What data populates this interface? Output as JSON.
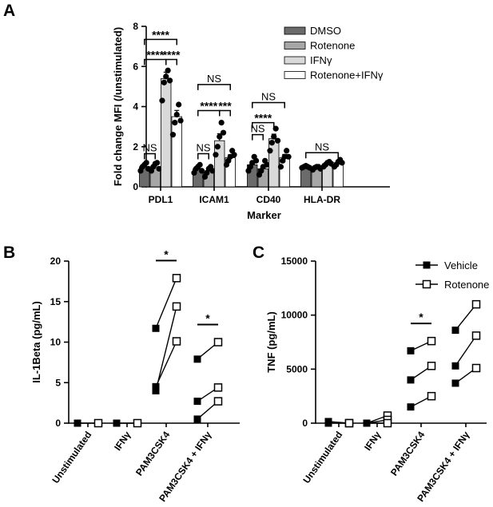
{
  "chart_data": [
    {
      "panel": "A",
      "type": "bar",
      "xlabel": "Marker",
      "ylabel": "Fold change MFI (/unstimulated)",
      "ylim": [
        0,
        8
      ],
      "yticks": [
        0,
        2,
        4,
        6,
        8
      ],
      "categories": [
        "PDL1",
        "ICAM1",
        "CD40",
        "HLA-DR"
      ],
      "legend_position": "top-right",
      "series": [
        {
          "name": "DMSO",
          "color": "#6b6b6b",
          "values": [
            1.0,
            0.9,
            1.1,
            1.0
          ],
          "points": [
            [
              0.8,
              1.0,
              1.1,
              1.2,
              0.9
            ],
            [
              0.7,
              0.9,
              1.0,
              1.1,
              0.8
            ],
            [
              0.8,
              1.0,
              1.2,
              1.5,
              1.3
            ],
            [
              0.95,
              1.0,
              1.05,
              1.0,
              0.95
            ]
          ]
        },
        {
          "name": "Rotenone",
          "color": "#a6a6a6",
          "values": [
            1.0,
            0.8,
            0.9,
            0.95
          ],
          "points": [
            [
              0.8,
              1.0,
              1.15,
              1.2,
              0.9
            ],
            [
              0.5,
              0.7,
              0.9,
              1.0,
              0.8
            ],
            [
              0.6,
              0.8,
              1.0,
              1.3,
              1.1
            ],
            [
              0.85,
              0.95,
              1.0,
              1.0,
              0.9
            ]
          ]
        },
        {
          "name": "IFNγ",
          "color": "#d9d9d9",
          "values": [
            5.4,
            2.3,
            2.4,
            1.15
          ],
          "points": [
            [
              4.3,
              5.2,
              5.5,
              5.8,
              5.3
            ],
            [
              1.6,
              2.0,
              2.5,
              3.2,
              2.7
            ],
            [
              1.8,
              2.2,
              2.5,
              2.9,
              2.3
            ],
            [
              1.0,
              1.1,
              1.2,
              1.25,
              1.15
            ]
          ]
        },
        {
          "name": "Rotenone+IFNγ",
          "color": "#ffffff",
          "values": [
            3.5,
            1.45,
            1.45,
            1.2
          ],
          "points": [
            [
              2.6,
              3.2,
              3.6,
              4.1,
              3.3
            ],
            [
              1.1,
              1.3,
              1.5,
              1.8,
              1.6
            ],
            [
              1.0,
              1.3,
              1.5,
              1.8,
              1.5
            ],
            [
              1.0,
              1.1,
              1.25,
              1.35,
              1.2
            ]
          ]
        }
      ],
      "annotations": [
        {
          "text": "NS",
          "cat": 0,
          "from": 0,
          "to": 1,
          "y": 1.65
        },
        {
          "text": "****",
          "cat": 0,
          "from": 0,
          "to": 2,
          "y": 6.35
        },
        {
          "text": "****",
          "cat": 0,
          "from": 2,
          "to": 3,
          "y": 6.35
        },
        {
          "text": "****",
          "cat": 0,
          "from": 0,
          "to": 3,
          "y": 7.35
        },
        {
          "text": "NS",
          "cat": 1,
          "from": 0,
          "to": 1,
          "y": 1.65
        },
        {
          "text": "****",
          "cat": 1,
          "from": 0,
          "to": 2,
          "y": 3.8
        },
        {
          "text": "***",
          "cat": 1,
          "from": 2,
          "to": 3,
          "y": 3.8
        },
        {
          "text": "NS",
          "cat": 1,
          "from": 0,
          "to": 3,
          "y": 5.1
        },
        {
          "text": "NS",
          "cat": 2,
          "from": 0,
          "to": 1,
          "y": 2.6
        },
        {
          "text": "****",
          "cat": 2,
          "from": 0,
          "to": 2,
          "y": 3.2
        },
        {
          "text": "NS",
          "cat": 2,
          "from": 0,
          "to": 3,
          "y": 4.2
        },
        {
          "text": "NS",
          "cat": 3,
          "from": 0,
          "to": 3,
          "y": 1.7
        }
      ]
    },
    {
      "panel": "B",
      "type": "line",
      "ylabel": "IL-1Beta (pg/mL)",
      "ylim": [
        0,
        20
      ],
      "yticks": [
        0,
        5,
        10,
        15,
        20
      ],
      "categories": [
        "Unstimulated",
        "IFNγ",
        "PAM3CSK4",
        "PAM3CSK4 + IFNγ"
      ],
      "pairs": [
        [
          [
            0,
            0
          ]
        ],
        [
          [
            0,
            0
          ]
        ],
        [
          [
            11.7,
            17.9
          ],
          [
            4.0,
            14.4
          ],
          [
            4.5,
            10.1
          ]
        ],
        [
          [
            7.9,
            10.0
          ],
          [
            2.7,
            4.4
          ],
          [
            0.5,
            2.7
          ]
        ]
      ],
      "significance": [
        {
          "cat": 2,
          "text": "*"
        },
        {
          "cat": 3,
          "text": "*"
        }
      ]
    },
    {
      "panel": "C",
      "type": "line",
      "ylabel": "TNF (pg/mL)",
      "ylim": [
        0,
        15000
      ],
      "yticks": [
        0,
        5000,
        10000,
        15000
      ],
      "categories": [
        "Unstimulated",
        "IFNγ",
        "PAM3CSK4",
        "PAM3CSK4 + IFNγ"
      ],
      "legend_position": "top-right",
      "series": [
        {
          "name": "Vehicle",
          "marker": "filled-square"
        },
        {
          "name": "Rotenone",
          "marker": "open-square"
        }
      ],
      "pairs": [
        [
          [
            150,
            0
          ],
          [
            0,
            0
          ]
        ],
        [
          [
            0,
            700
          ],
          [
            0,
            300
          ],
          [
            0,
            0
          ]
        ],
        [
          [
            6700,
            7600
          ],
          [
            4000,
            5300
          ],
          [
            1500,
            2500
          ]
        ],
        [
          [
            8600,
            11000
          ],
          [
            5300,
            8100
          ],
          [
            3700,
            5100
          ]
        ]
      ],
      "significance": [
        {
          "cat": 2,
          "text": "*"
        }
      ]
    }
  ]
}
